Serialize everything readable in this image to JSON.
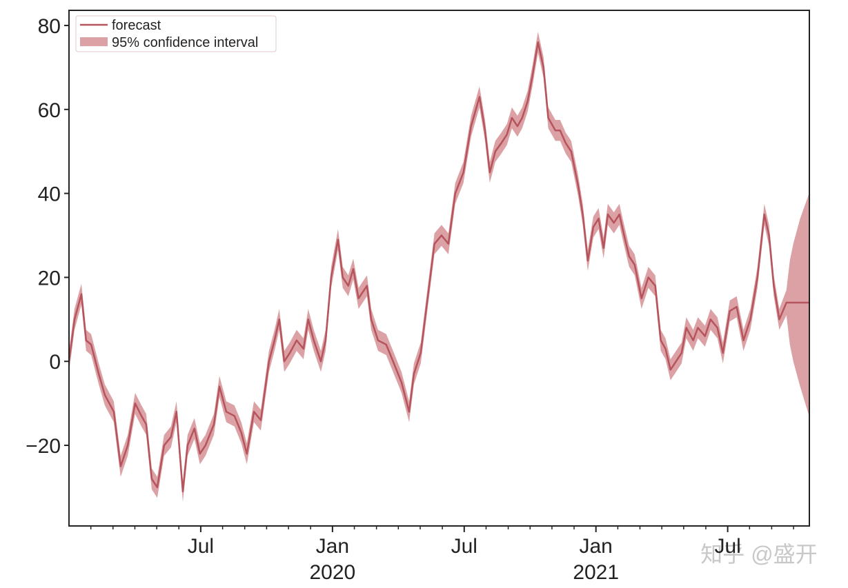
{
  "chart_data": {
    "type": "line",
    "x": [
      2019.0,
      2019.021,
      2019.047,
      2019.065,
      2019.084,
      2019.113,
      2019.136,
      2019.17,
      2019.196,
      2019.223,
      2019.251,
      2019.275,
      2019.293,
      2019.314,
      2019.335,
      2019.361,
      2019.387,
      2019.408,
      2019.432,
      2019.45,
      2019.476,
      2019.497,
      2019.518,
      2019.55,
      2019.571,
      2019.597,
      2019.628,
      2019.654,
      2019.675,
      2019.702,
      2019.728,
      2019.759,
      2019.78,
      2019.798,
      2019.817,
      2019.838,
      2019.864,
      2019.89,
      2019.908,
      2019.929,
      2019.956,
      2019.974,
      2019.995,
      2020.021,
      2020.039,
      2020.06,
      2020.079,
      2020.099,
      2020.131,
      2020.147,
      2020.173,
      2020.204,
      2020.23,
      2020.262,
      2020.291,
      2020.309,
      2020.335,
      2020.361,
      2020.387,
      2020.414,
      2020.44,
      2020.466,
      2020.497,
      2020.526,
      2020.558,
      2020.579,
      2020.597,
      2020.618,
      2020.641,
      2020.662,
      2020.681,
      2020.702,
      2020.72,
      2020.741,
      2020.759,
      2020.78,
      2020.801,
      2020.819,
      2020.846,
      2020.864,
      2020.885,
      2020.906,
      2020.932,
      2020.95,
      2020.969,
      2020.99,
      2021.01,
      2021.029,
      2021.045,
      2021.068,
      2021.089,
      2021.107,
      2021.126,
      2021.147,
      2021.173,
      2021.199,
      2021.225,
      2021.246,
      2021.264,
      2021.283,
      2021.304,
      2021.325,
      2021.343,
      2021.369,
      2021.387,
      2021.414,
      2021.435,
      2021.461,
      2021.482,
      2021.508,
      2021.534,
      2021.56,
      2021.586,
      2021.613,
      2021.639,
      2021.657,
      2021.675,
      2021.696,
      2021.723,
      2021.736,
      2021.749,
      2021.775,
      2021.809
    ],
    "series": [
      {
        "name": "forecast",
        "color": "#b5545c",
        "values": [
          0,
          10,
          16,
          5,
          4,
          -3,
          -8,
          -12,
          -25,
          -20,
          -10,
          -13,
          -15,
          -28,
          -30,
          -20,
          -18,
          -12,
          -31,
          -20,
          -16,
          -22,
          -20,
          -15,
          -6,
          -12,
          -13,
          -17,
          -22,
          -12,
          -14,
          0,
          5,
          10,
          0,
          2,
          5,
          3,
          10,
          5,
          0,
          5,
          20,
          29,
          20,
          18,
          22,
          15,
          18,
          10,
          5,
          4,
          0,
          -5,
          -12,
          -3,
          2,
          15,
          28,
          30,
          28,
          40,
          45,
          56,
          63,
          55,
          45,
          50,
          52,
          54,
          58,
          56,
          58,
          62,
          68,
          76,
          70,
          58,
          55,
          55,
          52,
          50,
          42,
          35,
          24,
          32,
          34,
          27,
          35,
          33,
          35,
          30,
          25,
          23,
          15,
          20,
          18,
          5,
          3,
          -2,
          0,
          2,
          8,
          5,
          8,
          6,
          10,
          8,
          2,
          12,
          13,
          5,
          10,
          20,
          35,
          30,
          18,
          10,
          14,
          14,
          14,
          14,
          14
        ]
      }
    ],
    "band": {
      "name": "95% confidence interval",
      "color": "#cf8286",
      "lower": [
        -2.5,
        7.5,
        13.5,
        2.5,
        1.5,
        -5.5,
        -10.5,
        -14.5,
        -27.5,
        -22.5,
        -12.5,
        -15.5,
        -17.5,
        -30.5,
        -32.5,
        -22.5,
        -20.5,
        -14.5,
        -33.5,
        -22.5,
        -18.5,
        -24.5,
        -22.5,
        -17.5,
        -8.5,
        -14.5,
        -15.5,
        -19.5,
        -24.5,
        -14.5,
        -16.5,
        -2.5,
        2.5,
        7.5,
        -2.5,
        -0.5,
        2.5,
        0.5,
        7.5,
        2.5,
        -2.5,
        2.5,
        17.5,
        26.5,
        17.5,
        15.5,
        19.5,
        12.5,
        15.5,
        7.5,
        2.5,
        1.5,
        -2.5,
        -7.5,
        -14.5,
        -5.5,
        -0.5,
        12.5,
        25.5,
        27.5,
        25.5,
        37.5,
        42.5,
        53.5,
        60.5,
        52.5,
        42.5,
        47.5,
        49.5,
        51.5,
        55.5,
        53.5,
        55.5,
        59.5,
        65.5,
        73.5,
        67.5,
        55.5,
        52.5,
        52.5,
        49.5,
        47.5,
        39.5,
        32.5,
        21.5,
        29.5,
        31.5,
        24.5,
        32.5,
        30.5,
        32.5,
        27.5,
        22.5,
        20.5,
        12.5,
        17.5,
        15.5,
        2.5,
        0.5,
        -4.5,
        -2.5,
        -0.5,
        5.5,
        2.5,
        5.5,
        3.5,
        7.5,
        5.5,
        -0.5,
        9.5,
        10.5,
        2.5,
        7.5,
        17.5,
        32.5,
        27.5,
        15.5,
        7.5,
        11,
        4,
        0,
        -6,
        -13
      ],
      "upper": [
        2.5,
        12.5,
        18.5,
        7.5,
        6.5,
        -0.5,
        -5.5,
        -9.5,
        -22.5,
        -17.5,
        -7.5,
        -10.5,
        -12.5,
        -25.5,
        -27.5,
        -17.5,
        -15.5,
        -9.5,
        -28.5,
        -17.5,
        -13.5,
        -19.5,
        -17.5,
        -12.5,
        -3.5,
        -9.5,
        -10.5,
        -14.5,
        -19.5,
        -9.5,
        -11.5,
        2.5,
        7.5,
        12.5,
        2.5,
        4.5,
        7.5,
        5.5,
        12.5,
        7.5,
        2.5,
        7.5,
        22.5,
        31.5,
        22.5,
        20.5,
        24.5,
        17.5,
        20.5,
        12.5,
        7.5,
        6.5,
        2.5,
        -2.5,
        -9.5,
        -0.5,
        4.5,
        17.5,
        30.5,
        32.5,
        30.5,
        42.5,
        47.5,
        58.5,
        65.5,
        57.5,
        47.5,
        52.5,
        54.5,
        56.5,
        60.5,
        58.5,
        60.5,
        64.5,
        70.5,
        78.5,
        72.5,
        60.5,
        57.5,
        57.5,
        54.5,
        52.5,
        44.5,
        37.5,
        26.5,
        34.5,
        36.5,
        29.5,
        37.5,
        35.5,
        37.5,
        32.5,
        27.5,
        25.5,
        17.5,
        22.5,
        20.5,
        7.5,
        5.5,
        0.5,
        2.5,
        4.5,
        10.5,
        7.5,
        10.5,
        8.5,
        12.5,
        10.5,
        4.5,
        14.5,
        15.5,
        7.5,
        12.5,
        22.5,
        37.5,
        32.5,
        20.5,
        12.5,
        17,
        24,
        28,
        34,
        40
      ]
    },
    "xlim": [
      2019.0,
      2021.81
    ],
    "ylim": [
      -39.2,
      83.6
    ],
    "xticks": [
      {
        "value": 2019.5,
        "label": "Jul"
      },
      {
        "value": 2020.0,
        "label": "Jan",
        "year": "2020"
      },
      {
        "value": 2020.5,
        "label": "Jul"
      },
      {
        "value": 2021.0,
        "label": "Jan",
        "year": "2021"
      },
      {
        "value": 2021.5,
        "label": "Jul"
      }
    ],
    "xminorticks": [
      2019.083,
      2019.167,
      2019.25,
      2019.333,
      2019.417,
      2019.583,
      2019.667,
      2019.75,
      2019.833,
      2019.917,
      2020.083,
      2020.167,
      2020.25,
      2020.333,
      2020.417,
      2020.583,
      2020.667,
      2020.75,
      2020.833,
      2020.917,
      2021.083,
      2021.167,
      2021.25,
      2021.333,
      2021.417,
      2021.583,
      2021.667,
      2021.75
    ],
    "yticks": [
      {
        "value": -20,
        "label": "−20"
      },
      0,
      20,
      40,
      60,
      80
    ],
    "legend": "upper left"
  },
  "watermark": "知乎 @盛开"
}
